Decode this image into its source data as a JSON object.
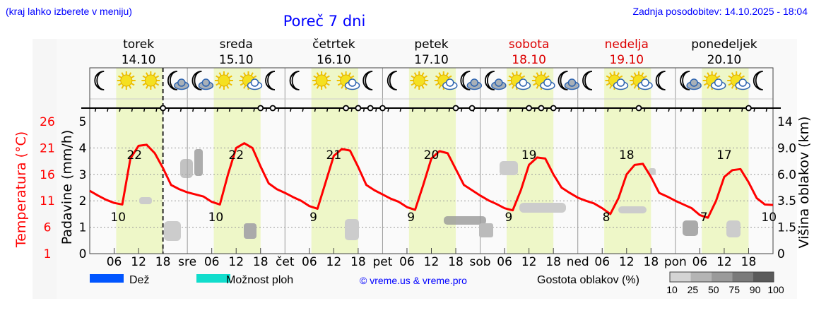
{
  "header": {
    "left_note": "(kraj lahko izberete v meniju)",
    "title": "Poreč 7 dni",
    "updated": "Zadnja posodobitev: 14.10.2025 - 18:04"
  },
  "days": [
    {
      "name": "torek",
      "date": "14.10",
      "abbr": "",
      "weekend": false,
      "icons": [
        "moon",
        "sun",
        "sun",
        "moon-cloud"
      ]
    },
    {
      "name": "sreda",
      "date": "15.10",
      "abbr": "sre",
      "weekend": false,
      "icons": [
        "moon-cloud",
        "sun",
        "sun-cloud",
        "moon"
      ]
    },
    {
      "name": "četrtek",
      "date": "16.10",
      "abbr": "čet",
      "weekend": false,
      "icons": [
        "moon",
        "sun",
        "sun-cloud",
        "moon"
      ]
    },
    {
      "name": "petek",
      "date": "17.10",
      "abbr": "pet",
      "weekend": false,
      "icons": [
        "moon",
        "sun",
        "sun-cloud",
        "moon-cloud"
      ]
    },
    {
      "name": "sobota",
      "date": "18.10",
      "abbr": "sob",
      "weekend": true,
      "icons": [
        "moon-cloud",
        "sun-cloud",
        "sun-cloud",
        "moon-cloud"
      ]
    },
    {
      "name": "nedelja",
      "date": "19.10",
      "abbr": "ned",
      "weekend": true,
      "icons": [
        "moon",
        "sun-cloud",
        "sun-cloud",
        "moon"
      ]
    },
    {
      "name": "ponedeljek",
      "date": "20.10",
      "abbr": "pon",
      "weekend": false,
      "icons": [
        "moon-cloud",
        "sun-cloud",
        "sun-cloud",
        "moon"
      ]
    }
  ],
  "colors": {
    "temperature": "#ff0000",
    "daytime": "#eef7c8",
    "weekend": "#dd0000",
    "title": "#0000ff",
    "rain": "#0055ff",
    "showers": "#11ddcc"
  },
  "chart_data": {
    "type": "line",
    "title": "Poreč 7 dni",
    "x_tick_hours": [
      "06",
      "12",
      "18"
    ],
    "current_time_hour": 18,
    "axes": {
      "left_temperature": {
        "label": "Temperatura (°C)",
        "ticks": [
          "1",
          "6",
          "11",
          "16",
          "21",
          "26"
        ],
        "range": [
          1,
          26
        ]
      },
      "left_precip": {
        "label": "Padavine (mm/h)",
        "ticks": [
          "0",
          "1",
          "2",
          "3",
          "4",
          "5"
        ],
        "range": [
          0,
          5
        ]
      },
      "right_cloud_height": {
        "label": "Višina oblakov (km)",
        "ticks": [
          "0",
          "1.5",
          "3.5",
          "6.0",
          "9.0",
          "14"
        ]
      }
    },
    "temperature": {
      "start_hour": 0,
      "step_hours": 2,
      "values": [
        12.9,
        12.0,
        11.2,
        10.6,
        10.3,
        19.0,
        21.4,
        21.6,
        20.0,
        17.2,
        14.0,
        13.2,
        12.6,
        12.2,
        11.8,
        10.8,
        10.3,
        16.0,
        21.0,
        21.9,
        21.0,
        17.5,
        14.3,
        13.2,
        12.5,
        11.7,
        11.0,
        10.0,
        9.5,
        14.5,
        19.5,
        20.8,
        20.5,
        17.4,
        14.0,
        13.0,
        12.2,
        11.4,
        10.8,
        9.8,
        9.3,
        14.0,
        19.0,
        20.4,
        20.0,
        17.0,
        14.0,
        13.0,
        12.0,
        11.1,
        10.4,
        9.6,
        9.2,
        13.0,
        17.8,
        19.2,
        19.0,
        16.0,
        13.5,
        12.5,
        11.6,
        11.0,
        10.5,
        9.6,
        8.5,
        11.5,
        16.0,
        17.8,
        18.0,
        15.5,
        12.5,
        11.8,
        11.0,
        10.3,
        9.6,
        8.3,
        7.8,
        11.0,
        15.5,
        16.8,
        17.0,
        14.5,
        11.5,
        10.3,
        10.2
      ]
    },
    "labels": {
      "min": [
        {
          "hour": 7,
          "value": "10"
        },
        {
          "hour": 31,
          "value": "10"
        },
        {
          "hour": 55,
          "value": "9"
        },
        {
          "hour": 79,
          "value": "9"
        },
        {
          "hour": 103,
          "value": "9"
        },
        {
          "hour": 127,
          "value": "8"
        },
        {
          "hour": 151,
          "value": "7"
        },
        {
          "hour": 167,
          "value": "10"
        }
      ],
      "max": [
        {
          "hour": 11,
          "value": "22"
        },
        {
          "hour": 36,
          "value": "22"
        },
        {
          "hour": 60,
          "value": "21"
        },
        {
          "hour": 84,
          "value": "20"
        },
        {
          "hour": 108,
          "value": "19"
        },
        {
          "hour": 132,
          "value": "18"
        },
        {
          "hour": 156,
          "value": "17"
        }
      ]
    },
    "precipitation": [],
    "legend": {
      "rain": "Dež",
      "showers": "Možnost ploh",
      "copyright": "© vreme.us & vreme.pro",
      "cloud_density": "Gostota oblakov (%)",
      "cloud_scale": [
        "10",
        "25",
        "50",
        "75",
        "90",
        "100"
      ]
    }
  }
}
